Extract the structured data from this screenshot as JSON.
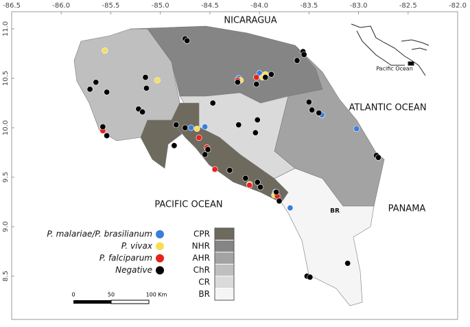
{
  "axes": {
    "xticks": [
      -86.5,
      {
        "value": -86,
        "label": "-86.0"
      },
      -85.5,
      {
        "value": -85,
        "label": "-85.0"
      },
      -84.5,
      {
        "value": -84,
        "label": "-84.0"
      },
      -83.5,
      {
        "value": -83,
        "label": "-83.0"
      },
      -82.5,
      {
        "value": -82,
        "label": "-82.0"
      }
    ],
    "yticks": [
      8.5,
      {
        "value": 9,
        "label": "9.0"
      },
      9.5,
      {
        "value": 10,
        "label": "10.0"
      },
      10.5,
      {
        "value": 11,
        "label": "11.0"
      }
    ]
  },
  "labels": {
    "nicaragua": "NICARAGUA",
    "atlantic": "ATLANTIC OCEAN",
    "pacific": "PACIFIC OCEAN",
    "panama": "PANAMA",
    "br": "BR"
  },
  "inset": {
    "label": "Pacific Ocean"
  },
  "scale": {
    "labels": [
      "0",
      "50",
      "100 Km"
    ]
  },
  "regions": [
    {
      "label": "CPR",
      "color": "#6e6a5e"
    },
    {
      "label": "NHR",
      "color": "#858585"
    },
    {
      "label": "AHR",
      "color": "#a3a3a3"
    },
    {
      "label": "ChR",
      "color": "#bfbfbf"
    },
    {
      "label": "CR",
      "color": "#dadada"
    },
    {
      "label": "BR",
      "color": "#f5f5f5"
    }
  ],
  "legend": [
    {
      "label": "P. malariae/P. brasilianum",
      "color": "#3b7ddd",
      "points": [
        [
          -84.21,
          10.5
        ],
        [
          -84.0,
          10.55
        ],
        [
          -84.69,
          10.0
        ],
        [
          -83.37,
          10.13
        ],
        [
          -83.02,
          9.99
        ],
        [
          -83.84,
          9.35
        ],
        [
          -83.69,
          9.19
        ],
        [
          -84.55,
          10.01
        ]
      ]
    },
    {
      "label": "P. vivax",
      "color": "#f7de5a",
      "points": [
        [
          -85.56,
          10.78
        ],
        [
          -85.03,
          10.48
        ],
        [
          -84.19,
          10.48
        ],
        [
          -83.97,
          10.51
        ],
        [
          -83.94,
          10.54
        ],
        [
          -84.63,
          9.99
        ],
        [
          -84.1,
          9.43
        ],
        [
          -83.85,
          9.32
        ]
      ]
    },
    {
      "label": "P. falciparum",
      "color": "#e8221b",
      "points": [
        [
          -85.58,
          9.97
        ],
        [
          -84.22,
          10.48
        ],
        [
          -84.03,
          10.51
        ],
        [
          -84.61,
          9.9
        ],
        [
          -84.53,
          9.8
        ],
        [
          -84.45,
          9.58
        ],
        [
          -83.82,
          9.31
        ],
        [
          -84.1,
          9.42
        ]
      ]
    },
    {
      "label": "Negative",
      "color": "#000000",
      "points": [
        [
          -84.75,
          10.9
        ],
        [
          -84.73,
          10.88
        ],
        [
          -83.56,
          10.77
        ],
        [
          -83.55,
          10.74
        ],
        [
          -83.62,
          10.68
        ],
        [
          -85.71,
          10.39
        ],
        [
          -85.65,
          10.46
        ],
        [
          -85.54,
          10.36
        ],
        [
          -85.15,
          10.51
        ],
        [
          -85.14,
          10.4
        ],
        [
          -85.22,
          10.19
        ],
        [
          -85.18,
          10.16
        ],
        [
          -85.58,
          10.01
        ],
        [
          -85.54,
          9.92
        ],
        [
          -84.47,
          10.25
        ],
        [
          -84.21,
          10.03
        ],
        [
          -84.02,
          10.08
        ],
        [
          -84.04,
          9.95
        ],
        [
          -83.5,
          10.26
        ],
        [
          -83.47,
          10.18
        ],
        [
          -83.4,
          10.15
        ],
        [
          -82.82,
          9.72
        ],
        [
          -82.8,
          9.7
        ],
        [
          -84.84,
          10.03
        ],
        [
          -84.75,
          10.0
        ],
        [
          -84.86,
          9.82
        ],
        [
          -84.55,
          9.73
        ],
        [
          -84.52,
          9.78
        ],
        [
          -84.3,
          9.57
        ],
        [
          -84.14,
          9.49
        ],
        [
          -84.02,
          9.45
        ],
        [
          -83.99,
          9.4
        ],
        [
          -83.83,
          9.35
        ],
        [
          -83.8,
          9.26
        ],
        [
          -83.52,
          8.5
        ],
        [
          -83.49,
          8.49
        ],
        [
          -83.11,
          8.63
        ],
        [
          -83.94,
          10.51
        ],
        [
          -84.03,
          10.44
        ],
        [
          -84.22,
          10.46
        ],
        [
          -83.88,
          10.54
        ]
      ]
    }
  ]
}
